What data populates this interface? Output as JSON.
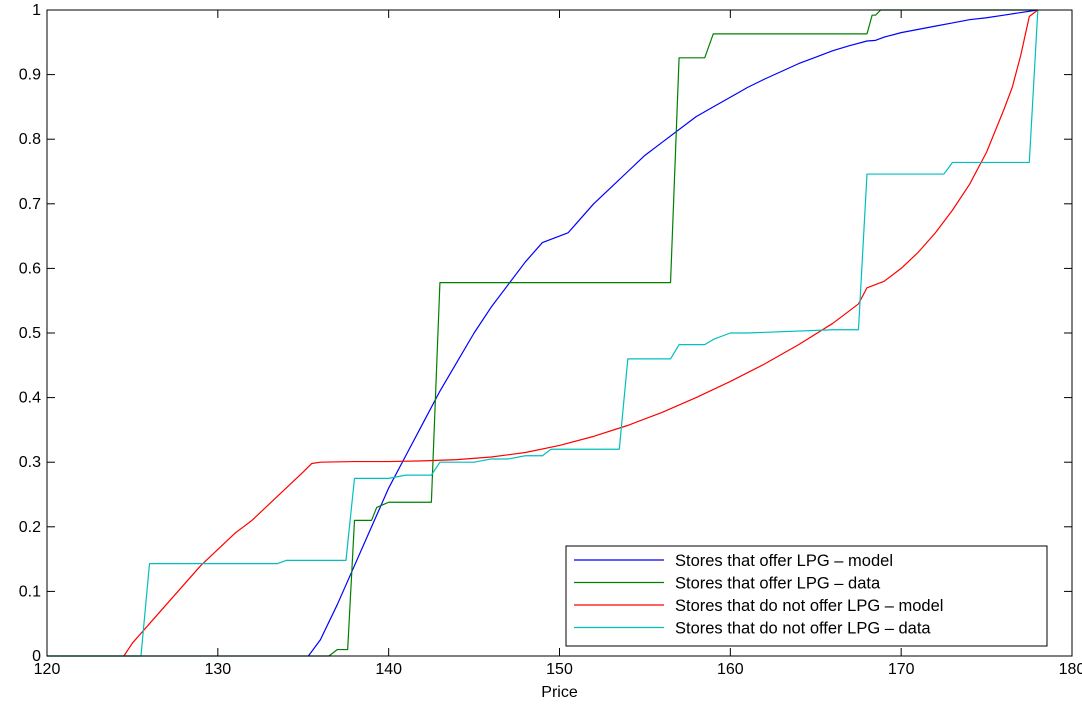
{
  "chart_data": {
    "type": "line",
    "title": "",
    "xlabel": "Price",
    "ylabel": "",
    "xlim": [
      120,
      180
    ],
    "ylim": [
      0,
      1
    ],
    "xticks": [
      120,
      130,
      140,
      150,
      160,
      170,
      180
    ],
    "yticks": [
      0,
      0.1,
      0.2,
      0.3,
      0.4,
      0.5,
      0.6,
      0.7,
      0.8,
      0.9,
      1
    ],
    "grid": false,
    "legend_position": "bottom-right",
    "series": [
      {
        "name": "Stores that offer LPG – model",
        "color": "#0000ff",
        "step": false,
        "x": [
          135.3,
          136,
          137,
          138,
          139,
          140,
          141,
          142,
          143,
          144,
          145,
          146,
          147,
          148,
          149,
          150,
          150.5,
          151,
          152,
          153,
          154,
          155,
          156,
          157,
          158,
          159,
          160,
          161,
          162,
          163,
          164,
          165,
          166,
          167,
          168,
          168.5,
          169,
          170,
          171,
          172,
          173,
          174,
          175,
          176,
          177,
          178
        ],
        "y": [
          0,
          0.025,
          0.08,
          0.14,
          0.2,
          0.26,
          0.31,
          0.36,
          0.41,
          0.455,
          0.5,
          0.54,
          0.575,
          0.61,
          0.64,
          0.65,
          0.655,
          0.67,
          0.7,
          0.725,
          0.75,
          0.775,
          0.795,
          0.815,
          0.835,
          0.85,
          0.865,
          0.88,
          0.893,
          0.905,
          0.917,
          0.927,
          0.937,
          0.945,
          0.952,
          0.953,
          0.958,
          0.965,
          0.97,
          0.975,
          0.98,
          0.985,
          0.988,
          0.992,
          0.996,
          1.0
        ]
      },
      {
        "name": "Stores that offer LPG – data",
        "color": "#008000",
        "step": false,
        "x": [
          120,
          136.5,
          137,
          137.3,
          137.6,
          138,
          139,
          139.3,
          140,
          142.5,
          143,
          156.5,
          157,
          158.5,
          159,
          168,
          168.3,
          168.5,
          168.8,
          169,
          178
        ],
        "y": [
          0,
          0,
          0.01,
          0.01,
          0.01,
          0.21,
          0.21,
          0.23,
          0.238,
          0.238,
          0.578,
          0.578,
          0.926,
          0.926,
          0.963,
          0.963,
          0.992,
          0.992,
          1.0,
          1.0,
          1.0
        ]
      },
      {
        "name": "Stores that do not offer LPG – model",
        "color": "#ff0000",
        "step": false,
        "x": [
          124.5,
          125,
          126,
          127,
          128,
          129,
          130,
          131,
          131.5,
          132,
          133,
          134,
          135,
          135.5,
          136,
          138,
          140,
          142,
          144,
          146,
          148,
          150,
          152,
          154,
          156,
          158,
          160,
          162,
          164,
          166,
          167.5,
          168,
          169,
          170,
          171,
          172,
          173,
          174,
          175,
          176,
          176.5,
          177,
          177.5,
          178
        ],
        "y": [
          0,
          0.02,
          0.05,
          0.08,
          0.11,
          0.14,
          0.165,
          0.19,
          0.2,
          0.21,
          0.235,
          0.26,
          0.285,
          0.298,
          0.3,
          0.301,
          0.301,
          0.302,
          0.304,
          0.308,
          0.315,
          0.326,
          0.34,
          0.357,
          0.377,
          0.4,
          0.425,
          0.452,
          0.482,
          0.515,
          0.545,
          0.57,
          0.58,
          0.6,
          0.625,
          0.655,
          0.69,
          0.73,
          0.78,
          0.845,
          0.88,
          0.93,
          0.99,
          1.0
        ]
      },
      {
        "name": "Stores that do not offer LPG – data",
        "color": "#00bfbf",
        "step": false,
        "x": [
          120,
          125.5,
          126,
          133.5,
          134,
          137.5,
          138,
          140,
          141,
          142.5,
          143,
          145,
          146,
          147,
          148,
          149,
          149.5,
          153.5,
          154,
          156.5,
          157,
          158.5,
          159,
          160,
          161,
          166,
          167,
          167.5,
          168,
          172.5,
          173,
          177.5,
          178
        ],
        "y": [
          0,
          0,
          0.143,
          0.143,
          0.148,
          0.148,
          0.275,
          0.275,
          0.28,
          0.28,
          0.3,
          0.3,
          0.305,
          0.305,
          0.31,
          0.31,
          0.32,
          0.32,
          0.46,
          0.46,
          0.482,
          0.482,
          0.49,
          0.5,
          0.5,
          0.505,
          0.505,
          0.505,
          0.746,
          0.746,
          0.764,
          0.764,
          1.0
        ]
      }
    ]
  }
}
